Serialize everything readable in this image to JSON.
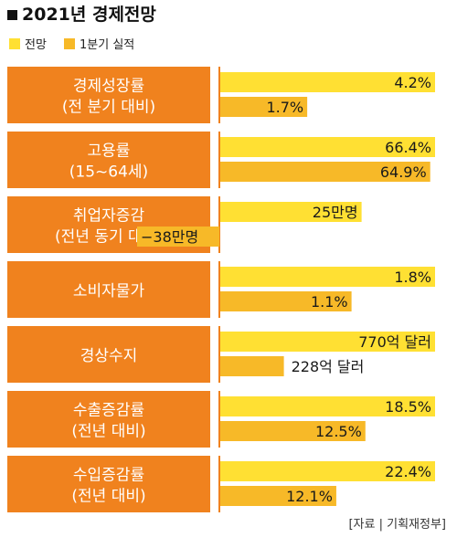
{
  "title": "2021년 경제전망",
  "legend": [
    {
      "label": "전망",
      "color": "#ffe033"
    },
    {
      "label": "1분기 실적",
      "color": "#f7b928"
    }
  ],
  "source": "[자료 | 기획재정부]",
  "colors": {
    "label_box": "#f0821e",
    "divider": "#f0821e",
    "forecast": "#ffe033",
    "actual": "#f7b928"
  },
  "chart_data": {
    "type": "bar",
    "title": "2021년 경제전망",
    "series_names": [
      "전망",
      "1분기 실적"
    ],
    "rows": [
      {
        "label": [
          "경제성장률",
          "(전 분기 대비)"
        ],
        "forecast": 4.2,
        "actual": 1.7,
        "forecast_text": "4.2%",
        "actual_text": "1.7%",
        "unit": "%"
      },
      {
        "label": [
          "고용률",
          "(15~64세)"
        ],
        "forecast": 66.4,
        "actual": 64.9,
        "forecast_text": "66.4%",
        "actual_text": "64.9%",
        "unit": "%"
      },
      {
        "label": [
          "취업자증감",
          "(전년 동기 대비)"
        ],
        "forecast": 25,
        "actual": -38,
        "forecast_text": "25만명",
        "actual_text": "−38만명",
        "unit": "만명"
      },
      {
        "label": [
          "소비자물가"
        ],
        "forecast": 1.8,
        "actual": 1.1,
        "forecast_text": "1.8%",
        "actual_text": "1.1%",
        "unit": "%"
      },
      {
        "label": [
          "경상수지"
        ],
        "forecast": 770,
        "actual": 228,
        "forecast_text": "770억 달러",
        "actual_text": "228억 달러",
        "unit": "억 달러"
      },
      {
        "label": [
          "수출증감률",
          "(전년 대비)"
        ],
        "forecast": 18.5,
        "actual": 12.5,
        "forecast_text": "18.5%",
        "actual_text": "12.5%",
        "unit": "%"
      },
      {
        "label": [
          "수입증감률",
          "(전년 대비)"
        ],
        "forecast": 22.4,
        "actual": 12.1,
        "forecast_text": "22.4%",
        "actual_text": "12.1%",
        "unit": "%"
      }
    ]
  }
}
